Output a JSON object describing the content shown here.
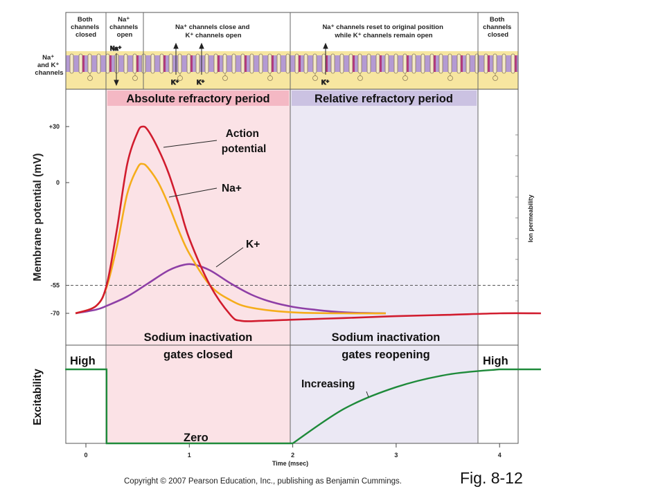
{
  "header": {
    "phases": [
      {
        "lines": [
          "Both",
          "channels",
          "closed"
        ]
      },
      {
        "lines": [
          "Na⁺",
          "channels",
          "open"
        ]
      },
      {
        "lines": [
          "Na⁺ channels close and",
          "K⁺ channels open"
        ]
      },
      {
        "lines": [
          "Na⁺ channels reset to original position",
          "while K⁺ channels remain open"
        ]
      },
      {
        "lines": [
          "Both",
          "channels",
          "closed"
        ]
      }
    ],
    "channel_label": [
      "Na⁺",
      "and K⁺",
      "channels"
    ],
    "na_flow_label": "Na⁺",
    "k_flow_label": "K⁺"
  },
  "regions": {
    "absolute": "Absolute refractory period",
    "relative": "Relative refractory period"
  },
  "chart_data": {
    "type": "line",
    "xlabel": "Time (msec)",
    "x_ticks": [
      "0",
      "1",
      "2",
      "3",
      "4"
    ],
    "x_range": [
      -0.2,
      4.4
    ],
    "ylabel": "Membrane potential (mV)",
    "y_ticks": [
      "+30",
      "0",
      "-55",
      "-70"
    ],
    "y_range": [
      -80,
      35
    ],
    "threshold": -55,
    "right_axis_label": "Ion permeability",
    "series": [
      {
        "name": "Action potential",
        "color": "#d11c2e",
        "x": [
          -0.1,
          0.1,
          0.2,
          0.3,
          0.4,
          0.5,
          0.55,
          0.6,
          0.7,
          0.8,
          0.9,
          1.0,
          1.2,
          1.4,
          1.5,
          1.7,
          2.0,
          2.5,
          3.0,
          3.5,
          4.0,
          4.4
        ],
        "y": [
          -70,
          -66,
          -55,
          -25,
          10,
          27,
          30,
          28,
          18,
          5,
          -12,
          -30,
          -55,
          -71,
          -74,
          -74,
          -73.4,
          -72.5,
          -71.5,
          -70.8,
          -70,
          -70
        ]
      },
      {
        "name": "Na+",
        "color": "#f5ad1b",
        "x": [
          -0.1,
          0.1,
          0.2,
          0.3,
          0.4,
          0.5,
          0.55,
          0.6,
          0.7,
          0.8,
          0.9,
          1.0,
          1.2,
          1.4,
          1.6,
          2.0,
          2.5,
          2.9
        ],
        "y": [
          -70,
          -66,
          -56,
          -34,
          -6,
          8,
          10,
          8,
          0,
          -12,
          -26,
          -38,
          -55,
          -63,
          -67,
          -69.5,
          -70,
          -70
        ]
      },
      {
        "name": "K+",
        "color": "#8e3fa6",
        "x": [
          -0.1,
          0.1,
          0.2,
          0.4,
          0.6,
          0.8,
          0.95,
          1.05,
          1.2,
          1.4,
          1.6,
          1.8,
          2.0,
          2.2,
          2.5,
          2.9
        ],
        "y": [
          -70,
          -68,
          -66,
          -61,
          -54,
          -47,
          -44,
          -44,
          -47,
          -54,
          -60,
          -64,
          -66.5,
          -68,
          -69.5,
          -70
        ]
      }
    ],
    "annotations": [
      {
        "text_lines": [
          "Action",
          "potential"
        ],
        "target": "Action potential"
      },
      {
        "text_lines": [
          "Na+"
        ],
        "target": "Na+"
      },
      {
        "text_lines": [
          "K+"
        ],
        "target": "K+"
      }
    ]
  },
  "gates": {
    "closed": [
      "Sodium inactivation",
      "gates closed"
    ],
    "reopening": [
      "Sodium inactivation",
      "gates reopening"
    ]
  },
  "excitability": {
    "ylabel": "Excitability",
    "high_left": "High",
    "high_right": "High",
    "zero": "Zero",
    "increasing": "Increasing",
    "levels_x": [
      -0.2,
      0.2,
      0.2,
      2.0,
      2.0,
      2.5,
      3.0,
      3.5,
      4.0,
      4.4
    ],
    "levels_y": [
      1,
      1,
      0,
      0,
      0,
      0.47,
      0.76,
      0.93,
      1.0,
      1.0
    ]
  },
  "footer": {
    "copyright": "Copyright © 2007 Pearson Education, Inc., publishing as Benjamin Cummings.",
    "fig_label": "Fig. 8-12"
  },
  "colors": {
    "abs_region": "#fbe2e6",
    "rel_region": "#ebe8f4",
    "membrane_yellow": "#f7e6a0",
    "membrane_purple": "#b49ad3",
    "excitability": "#1e8a3a"
  }
}
